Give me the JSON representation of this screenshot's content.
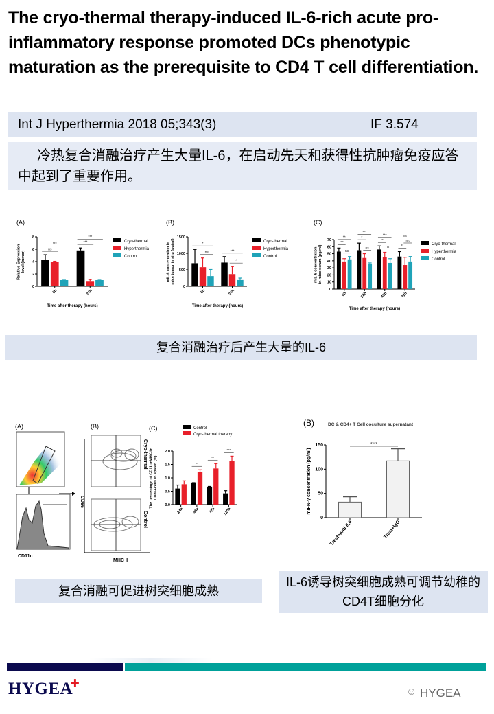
{
  "title": "The cryo-thermal therapy-induced IL-6-rich acute pro-inflammatory response promoted DCs phenotypic maturation as the prerequisite to CD4 T cell differentiation.",
  "citation": {
    "journal": "Int J Hyperthermia 2018 05;343(3)",
    "impact_factor": "IF 3.574"
  },
  "summary": "冷热复合消融治疗产生大量IL-6，在启动先天和获得性抗肿瘤免疫应答中起到了重要作用。",
  "captions": {
    "figure1": "复合消融治疗后产生大量的IL-6",
    "figure2": "复合消融可促进树突细胞成熟",
    "figure3": "IL-6诱导树突细胞成熟可调节幼稚的CD4T细胞分化"
  },
  "colors": {
    "cryo": "#000000",
    "hyper": "#e8202a",
    "control": "#1fa3b8",
    "navy": "#0b0a4e",
    "teal": "#00a19a",
    "box": "#dde4f1"
  },
  "flow": {
    "panel_a": "(A)",
    "panel_b": "(B)",
    "hist_label": "CD11c",
    "y_axis": "CD86",
    "x_axis": "MHC II",
    "row_top": "Cryo-thermal",
    "row_bottom": "Control"
  },
  "chart_data": [
    {
      "type": "bar",
      "panel": "(A)",
      "categories": [
        "6h",
        "24h"
      ],
      "series": [
        {
          "name": "Cryo-thermal",
          "values": [
            4.3,
            5.8
          ],
          "errors": [
            0.8,
            0.4
          ]
        },
        {
          "name": "Hyperthermia",
          "values": [
            4.0,
            0.75
          ],
          "errors": [
            0.05,
            0.35
          ]
        },
        {
          "name": "Control",
          "values": [
            1.0,
            1.0
          ],
          "errors": [
            0,
            0
          ]
        }
      ],
      "xlabel": "Time after therapy (hours)",
      "ylabel": "Relative Expression level (tumor)",
      "ylim": [
        0,
        8
      ],
      "yticks": [
        "0",
        "2",
        "4",
        "6",
        "8"
      ],
      "legend": "right",
      "significance": [
        {
          "cat": 0,
          "from": 0,
          "to": 2,
          "label": "***"
        },
        {
          "cat": 0,
          "from": 0,
          "to": 1,
          "label": "ns"
        },
        {
          "cat": 1,
          "from": 0,
          "to": 2,
          "label": "***"
        },
        {
          "cat": 1,
          "from": 0,
          "to": 1,
          "label": "***"
        }
      ]
    },
    {
      "type": "bar",
      "panel": "(B)",
      "categories": [
        "6h",
        "24h"
      ],
      "series": [
        {
          "name": "Cryo-thermal",
          "values": [
            700,
            720
          ],
          "errors": [
            420,
            180
          ]
        },
        {
          "name": "Hyperthermia",
          "values": [
            580,
            370
          ],
          "errors": [
            280,
            230
          ]
        },
        {
          "name": "Control",
          "values": [
            310,
            190
          ],
          "errors": [
            200,
            60
          ]
        }
      ],
      "xlabel": "Time after therapy (hours)",
      "ylabel": "mIL-6 concentration in mice tumor in situ (pg/ml)",
      "ylim": [
        0,
        1500
      ],
      "yticks": [
        "0",
        "500",
        "1000",
        "1500"
      ],
      "legend": "right",
      "significance": [
        {
          "cat": 0,
          "from": 0,
          "to": 2,
          "label": "*"
        },
        {
          "cat": 0,
          "from": 1,
          "to": 2,
          "label": "ns"
        },
        {
          "cat": 1,
          "from": 0,
          "to": 2,
          "label": "***"
        },
        {
          "cat": 1,
          "from": 1,
          "to": 2,
          "label": "*"
        }
      ]
    },
    {
      "type": "bar",
      "panel": "(C)",
      "categories": [
        "6h",
        "24h",
        "48h",
        "72h"
      ],
      "series": [
        {
          "name": "Cryo-thermal",
          "values": [
            53,
            55,
            56,
            46
          ],
          "errors": [
            5,
            10,
            5,
            7
          ]
        },
        {
          "name": "Hyperthermia",
          "values": [
            39,
            44,
            45,
            34
          ],
          "errors": [
            4,
            6,
            7,
            11
          ]
        },
        {
          "name": "Control",
          "values": [
            42,
            36,
            37,
            39
          ],
          "errors": [
            4,
            1,
            6,
            7
          ]
        }
      ],
      "xlabel": "Time after therapy (hours)",
      "ylabel": "mIL-6 concentration in mice serum (pg/ml)",
      "ylim": [
        0,
        70
      ],
      "yticks": [
        "0",
        "10",
        "20",
        "30",
        "40",
        "50",
        "60",
        "70"
      ],
      "legend": "right",
      "significance": [
        {
          "cat": 0,
          "from": 0,
          "to": 2,
          "label": "**"
        },
        {
          "cat": 0,
          "from": 0,
          "to": 1,
          "label": "***"
        },
        {
          "cat": 0,
          "from": 1,
          "to": 2,
          "label": "ns"
        },
        {
          "cat": 1,
          "from": 0,
          "to": 2,
          "label": "***"
        },
        {
          "cat": 1,
          "from": 0,
          "to": 1,
          "label": "*"
        },
        {
          "cat": 1,
          "from": 1,
          "to": 2,
          "label": "ns"
        },
        {
          "cat": 2,
          "from": 0,
          "to": 2,
          "label": "***"
        },
        {
          "cat": 2,
          "from": 0,
          "to": 1,
          "label": "**"
        },
        {
          "cat": 2,
          "from": 1,
          "to": 2,
          "label": "ns"
        },
        {
          "cat": 3,
          "from": 0,
          "to": 2,
          "label": "ns"
        },
        {
          "cat": 3,
          "from": 0,
          "to": 1,
          "label": "**"
        },
        {
          "cat": 3,
          "from": 1,
          "to": 2,
          "label": "ns"
        }
      ]
    },
    {
      "type": "bar",
      "panel": "(C)",
      "categories": [
        "24h",
        "48h",
        "72h",
        "120h"
      ],
      "series": [
        {
          "name": "Control",
          "values": [
            0.6,
            0.8,
            0.67,
            0.42
          ],
          "errors": [
            0.13,
            0.02,
            0.01,
            0.1
          ]
        },
        {
          "name": "Cryo-thermal therapy",
          "values": [
            0.76,
            1.22,
            1.35,
            1.63
          ],
          "errors": [
            0.13,
            0.08,
            0.18,
            0.18
          ]
        }
      ],
      "xlabel": "",
      "ylabel": "The percentage of CD11c+MHCII+ CD86+cells in spleen (%)",
      "ylim": [
        0,
        2.0
      ],
      "yticks": [
        "0.0",
        "0.5",
        "1.0",
        "1.5",
        "2.0"
      ],
      "legend": "top",
      "significance": [
        {
          "cat": 1,
          "from": 0,
          "to": 1,
          "label": "*"
        },
        {
          "cat": 2,
          "from": 0,
          "to": 1,
          "label": "**"
        },
        {
          "cat": 3,
          "from": 0,
          "to": 1,
          "label": "***"
        }
      ]
    },
    {
      "type": "bar",
      "panel": "(B)",
      "title": "DC & CD4+ T Cell coculture supernatant",
      "categories": [
        "Treat+anti-IL6",
        "Treat+IgG"
      ],
      "series": [
        {
          "values": [
            32,
            117
          ],
          "errors": [
            11,
            25
          ]
        }
      ],
      "xlabel": "",
      "ylabel": "mIFN-γ concentration (pg/ml)",
      "ylim": [
        0,
        150
      ],
      "yticks": [
        "0",
        "50",
        "100",
        "150"
      ],
      "legend": "none",
      "significance": [
        {
          "span": [
            0,
            1
          ],
          "label": "****"
        }
      ]
    }
  ],
  "footer": {
    "logo": "HYGEA",
    "watermark": "HYGEA"
  }
}
